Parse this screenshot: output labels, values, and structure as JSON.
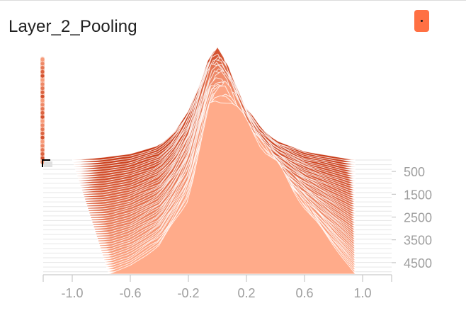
{
  "card": {
    "title": "Layer_2_Pooling"
  },
  "colors": {
    "accent": "#ff7043",
    "slice_light": "#ffab8a",
    "slice_dark": "#c93d1a",
    "axis": "#bdbdbd",
    "tick_label": "#9e9e9e",
    "title": "#212121"
  },
  "icons": {
    "menu": "more-dot-icon"
  },
  "chart_data": {
    "type": "area",
    "mode": "offset-histogram",
    "title": "Layer_2_Pooling",
    "xlabel": "",
    "ylabel": "",
    "xlim": [
      -1.2,
      1.2
    ],
    "step_range": [
      0,
      5000
    ],
    "x_ticks": [
      "-1.0",
      "-0.6",
      "-0.2",
      "0.2",
      "0.6",
      "1.0"
    ],
    "x_tick_values": [
      -1.0,
      -0.6,
      -0.2,
      0.2,
      0.6,
      1.0
    ],
    "step_ticks": [
      "500",
      "1500",
      "2500",
      "3500",
      "4500"
    ],
    "step_tick_values": [
      500,
      1500,
      2500,
      3500,
      4500
    ],
    "series_count": 50,
    "first_step": {
      "x": [
        -1.0,
        -0.8,
        -0.6,
        -0.4,
        -0.3,
        -0.2,
        -0.1,
        -0.05,
        0.0,
        0.05,
        0.1,
        0.2,
        0.3,
        0.4,
        0.6,
        0.8,
        0.95
      ],
      "density": [
        0.0,
        0.02,
        0.05,
        0.12,
        0.22,
        0.4,
        0.68,
        0.82,
        0.87,
        0.8,
        0.66,
        0.42,
        0.26,
        0.16,
        0.07,
        0.03,
        0.0
      ]
    },
    "last_step": {
      "x": [
        -0.75,
        -0.6,
        -0.4,
        -0.2,
        -0.1,
        -0.05,
        0.0,
        0.05,
        0.1,
        0.2,
        0.3,
        0.4,
        0.5,
        0.6,
        0.8,
        0.95
      ],
      "density": [
        0.0,
        0.03,
        0.1,
        0.27,
        0.48,
        0.6,
        0.62,
        0.63,
        0.61,
        0.53,
        0.46,
        0.4,
        0.31,
        0.24,
        0.1,
        0.0
      ]
    }
  }
}
